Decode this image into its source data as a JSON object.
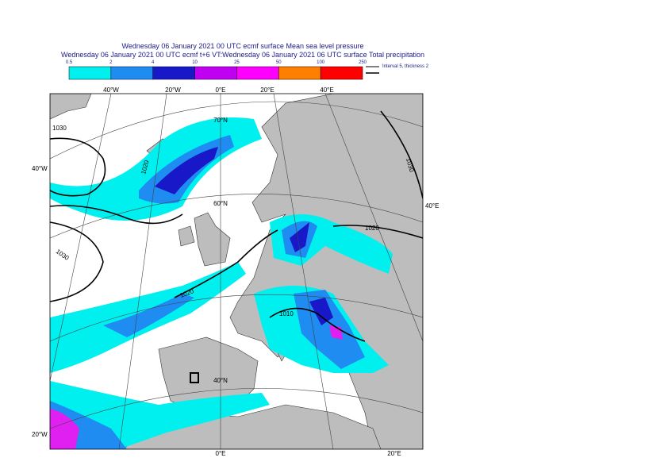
{
  "header": {
    "line1": "Wednesday 06 January 2021 00 UTC ecmf surface  Mean sea level pressure",
    "line2": "Wednesday 06 January 2021 00 UTC ecmf t+6 VT:Wednesday 06 January 2021 06 UTC surface  Total precipitation"
  },
  "colorbar": {
    "labels": [
      0.5,
      2,
      4,
      10,
      25,
      50,
      100,
      250
    ],
    "colors": [
      "#00f0f0",
      "#1e8cf0",
      "#1818c8",
      "#c000f0",
      "#ff00ff",
      "#ff8000",
      "#ff0000"
    ]
  },
  "contour_legend": "Interval 5, thickness 2",
  "graticule": {
    "top": [
      "40°W",
      "20°W",
      "0°E",
      "20°E",
      "40°E"
    ],
    "left": [
      "40°W",
      "20°W"
    ],
    "right": [
      "40°E"
    ],
    "bottom": [
      "0°E",
      "20°E"
    ],
    "inner": [
      "70°N",
      "60°N",
      "40°N"
    ]
  },
  "isobars": [
    "1030",
    "1020",
    "1030",
    "1020",
    "1030",
    "1020",
    "1010"
  ]
}
